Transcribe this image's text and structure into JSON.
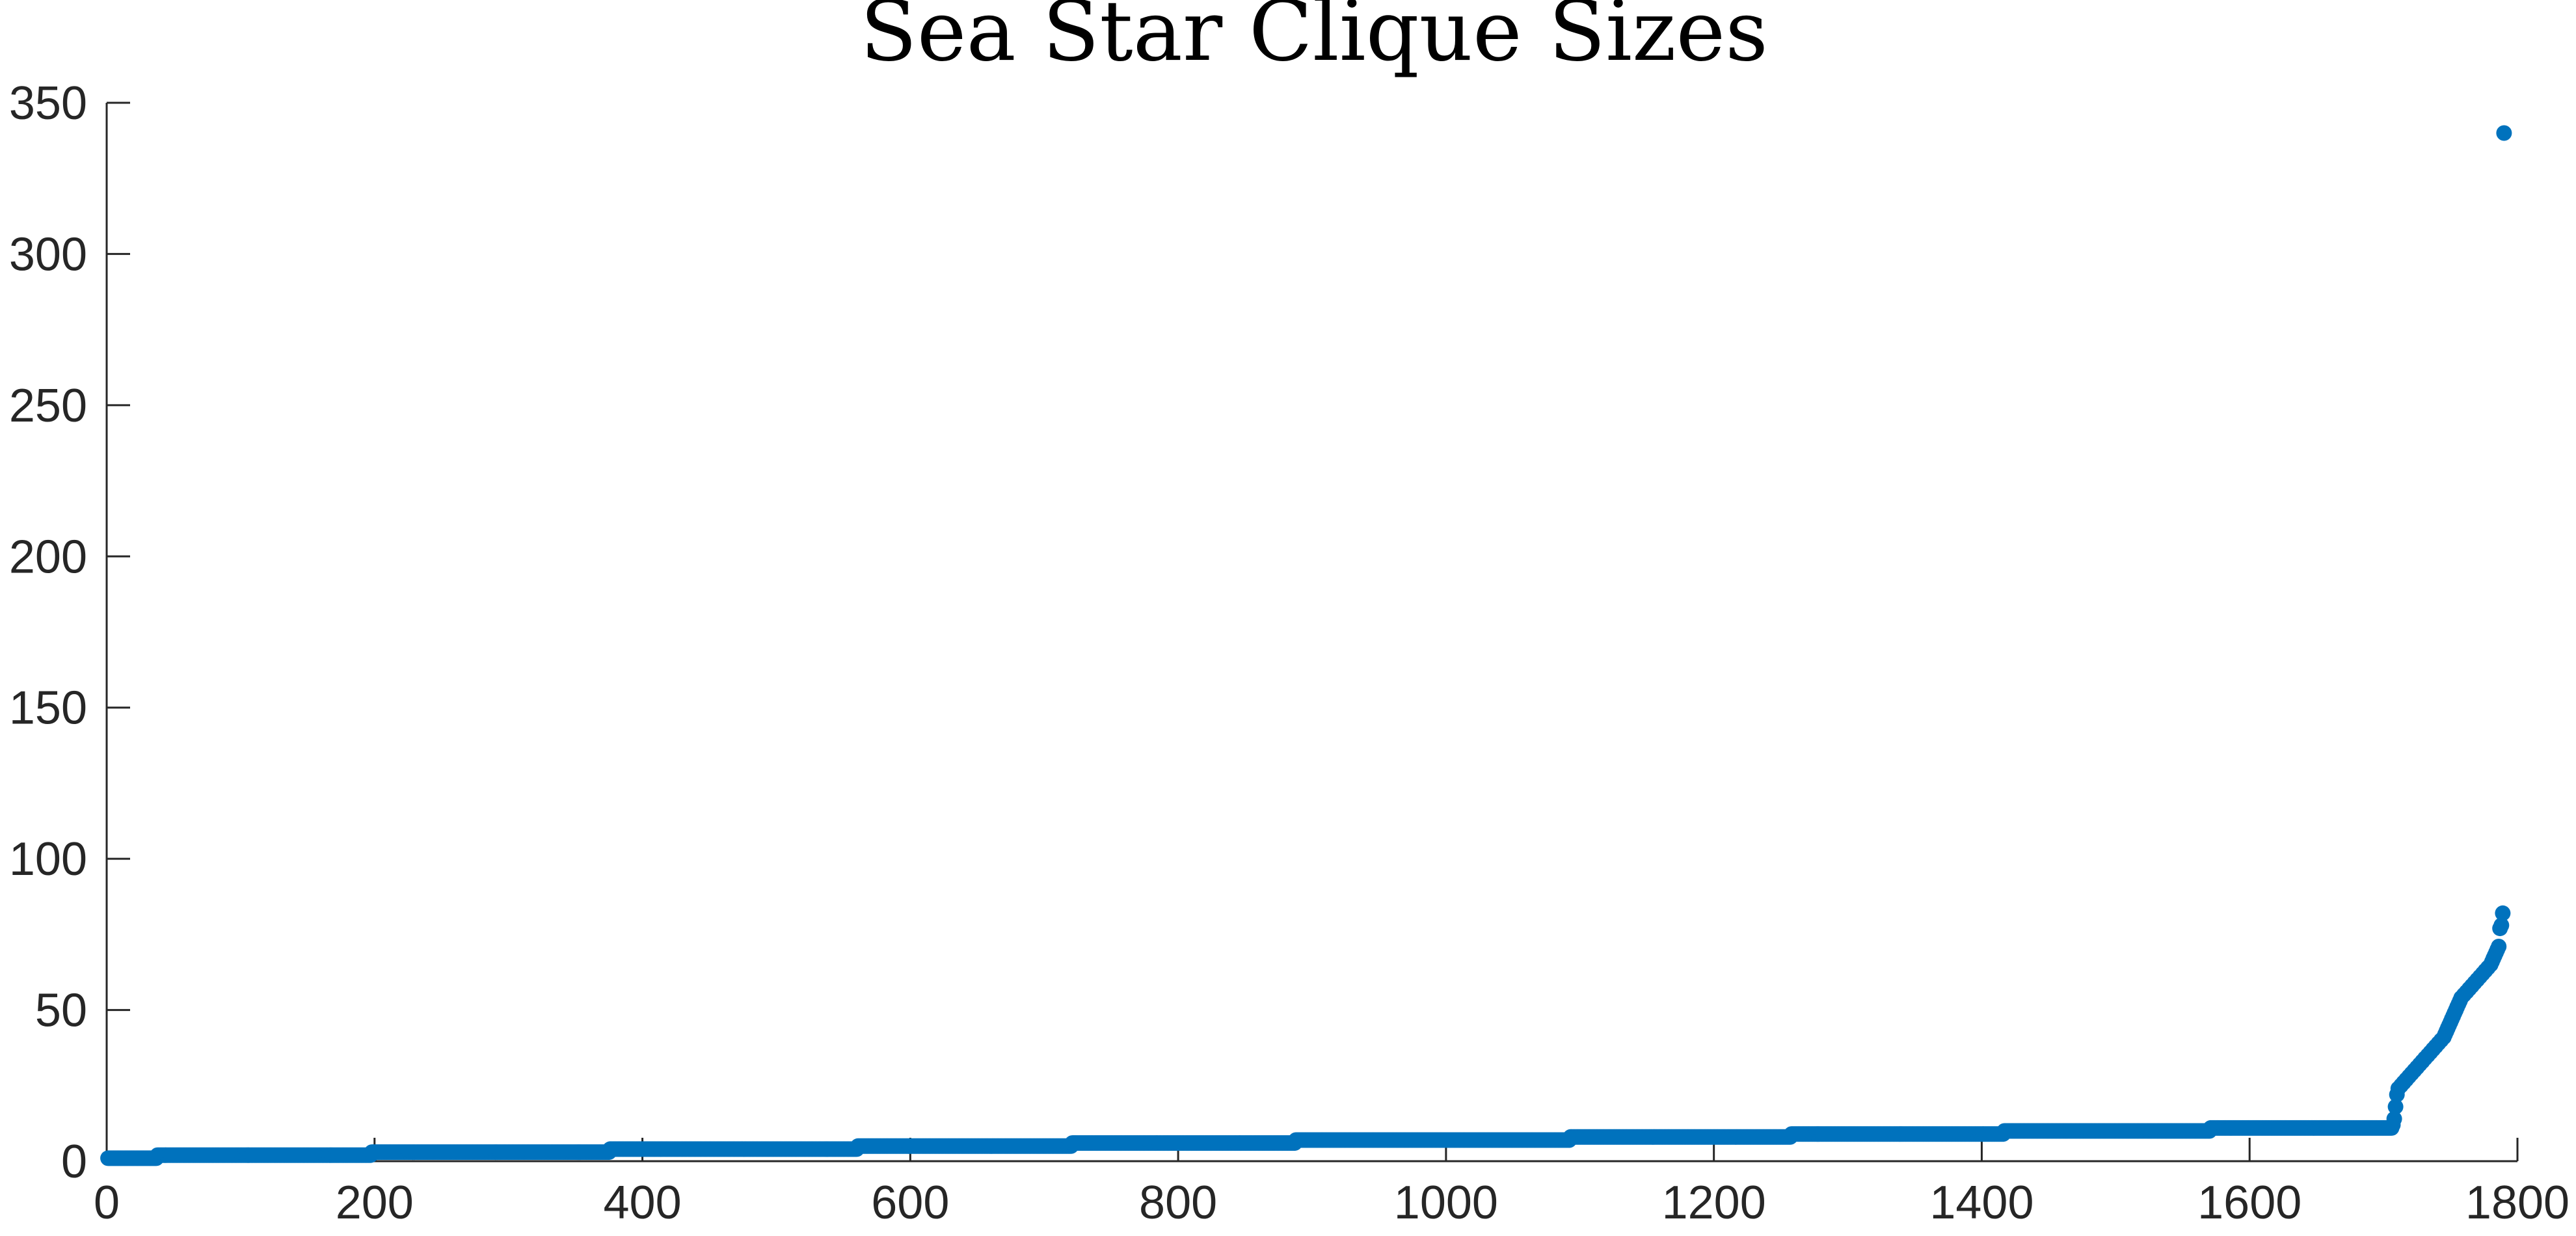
{
  "chart_data": {
    "type": "scatter",
    "title": "Sea Star Clique Sizes",
    "xlabel": "",
    "ylabel": "",
    "xlim": [
      0,
      1800
    ],
    "ylim": [
      0,
      350
    ],
    "xticks": [
      0,
      200,
      400,
      600,
      800,
      1000,
      1200,
      1400,
      1600,
      1800
    ],
    "yticks": [
      0,
      50,
      100,
      150,
      200,
      250,
      300,
      350
    ],
    "xtick_labels": [
      "0",
      "200",
      "400",
      "600",
      "800",
      "1000",
      "1200",
      "1400",
      "1600",
      "1800"
    ],
    "ytick_labels": [
      "0",
      "50",
      "100",
      "150",
      "200",
      "250",
      "300",
      "350"
    ],
    "grid": false,
    "marker_color": "#0072BD",
    "series": [
      {
        "segments": [
          {
            "x_start": 1,
            "x_end": 37,
            "y": 1
          },
          {
            "x_start": 38,
            "x_end": 197,
            "y": 2
          },
          {
            "x_start": 198,
            "x_end": 375,
            "y": 3
          },
          {
            "x_start": 376,
            "x_end": 560,
            "y": 4
          },
          {
            "x_start": 561,
            "x_end": 720,
            "y": 5
          },
          {
            "x_start": 721,
            "x_end": 887,
            "y": 6
          },
          {
            "x_start": 888,
            "x_end": 1092,
            "y": 7
          },
          {
            "x_start": 1093,
            "x_end": 1257,
            "y": 8
          },
          {
            "x_start": 1258,
            "x_end": 1416,
            "y": 9
          },
          {
            "x_start": 1417,
            "x_end": 1570,
            "y": 10
          },
          {
            "x_start": 1571,
            "x_end": 1705,
            "y": 11
          }
        ],
        "points": [
          [
            1706,
            11
          ],
          [
            1707,
            12
          ],
          [
            1708,
            14
          ],
          [
            1709,
            18
          ],
          [
            1710,
            22
          ],
          [
            1711,
            24
          ],
          [
            1713,
            25
          ],
          [
            1715,
            26
          ],
          [
            1717,
            27
          ],
          [
            1719,
            28
          ],
          [
            1721,
            29
          ],
          [
            1723,
            30
          ],
          [
            1725,
            31
          ],
          [
            1727,
            32
          ],
          [
            1729,
            33
          ],
          [
            1731,
            34
          ],
          [
            1733,
            35
          ],
          [
            1735,
            36
          ],
          [
            1737,
            37
          ],
          [
            1739,
            38
          ],
          [
            1741,
            39
          ],
          [
            1743,
            40
          ],
          [
            1745,
            41
          ],
          [
            1746,
            42
          ],
          [
            1747,
            43
          ],
          [
            1748,
            44
          ],
          [
            1749,
            45
          ],
          [
            1750,
            46
          ],
          [
            1751,
            47
          ],
          [
            1752,
            48
          ],
          [
            1753,
            49
          ],
          [
            1754,
            50
          ],
          [
            1755,
            51
          ],
          [
            1756,
            52
          ],
          [
            1757,
            53
          ],
          [
            1758,
            54
          ],
          [
            1760,
            55
          ],
          [
            1762,
            56
          ],
          [
            1764,
            57
          ],
          [
            1766,
            58
          ],
          [
            1768,
            59
          ],
          [
            1770,
            60
          ],
          [
            1772,
            61
          ],
          [
            1774,
            62
          ],
          [
            1776,
            63
          ],
          [
            1778,
            64
          ],
          [
            1780,
            65
          ],
          [
            1781,
            66
          ],
          [
            1782,
            67
          ],
          [
            1783,
            68
          ],
          [
            1784,
            69
          ],
          [
            1785,
            70
          ],
          [
            1786,
            71
          ],
          [
            1787,
            77
          ],
          [
            1788,
            78
          ],
          [
            1789,
            82
          ],
          [
            1790,
            340
          ]
        ]
      }
    ]
  }
}
